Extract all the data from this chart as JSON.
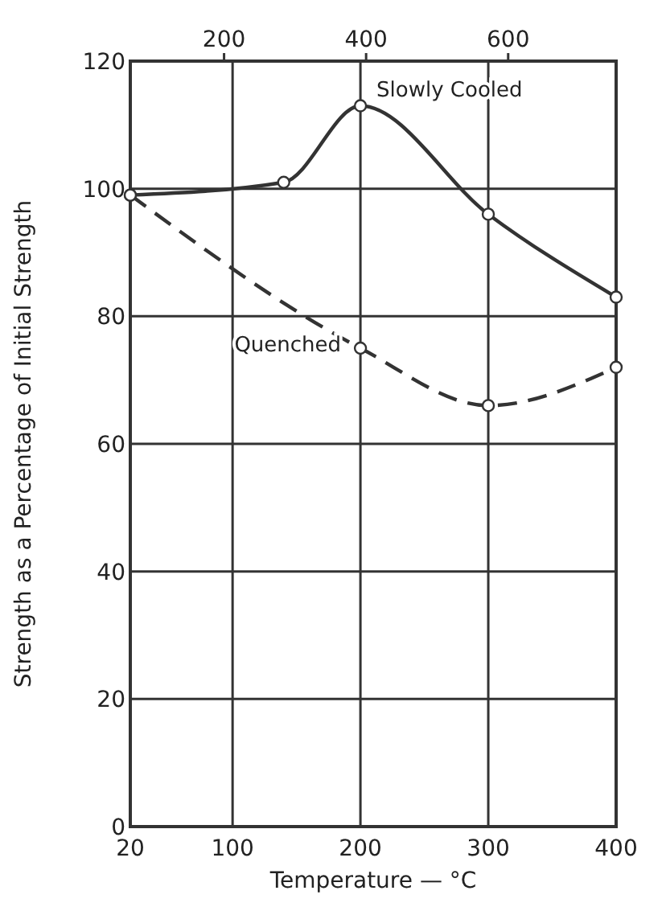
{
  "chart_data": {
    "type": "line",
    "xlabel": "Temperature — °C",
    "ylabel": "Strength as a Percentage of Initial Strength",
    "xlim": [
      20,
      400
    ],
    "xticks": [
      20,
      100,
      200,
      300,
      400
    ],
    "x2lim": [
      68,
      752
    ],
    "x2ticks": [
      200,
      400,
      600
    ],
    "ylim": [
      0,
      120
    ],
    "yticks": [
      0,
      20,
      40,
      60,
      80,
      100,
      120
    ],
    "grid": true,
    "marker": "circle",
    "series": [
      {
        "name": "Slowly Cooled",
        "color": "#333333",
        "line_style": "solid",
        "x": [
          20,
          140,
          200,
          300,
          400
        ],
        "values": [
          99,
          101,
          113,
          96,
          83
        ]
      },
      {
        "name": "Quenched",
        "color": "#333333",
        "line_style": "dashed",
        "x": [
          20,
          200,
          300,
          400
        ],
        "values": [
          99,
          75,
          66,
          72
        ]
      }
    ]
  }
}
